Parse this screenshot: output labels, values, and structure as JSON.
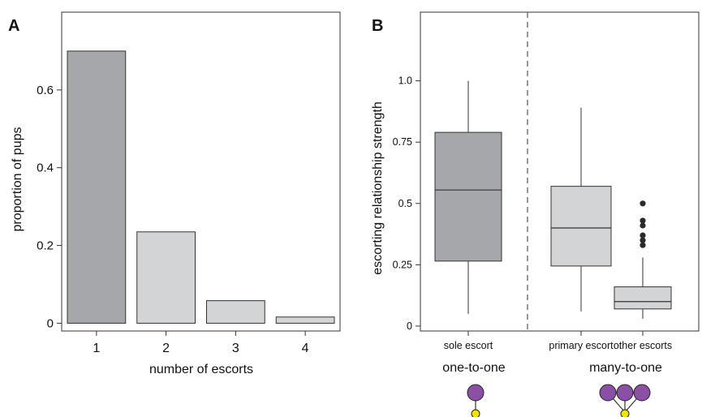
{
  "colors": {
    "dark": "#a6a7ab",
    "light": "#d3d4d6",
    "purple": "#8c4fa6",
    "yellow": "#f2e600",
    "outlier": "#2a2a2a"
  },
  "panels": {
    "a": "A",
    "b": "B"
  },
  "chart_data": [
    {
      "type": "bar",
      "panel": "A",
      "categories": [
        "1",
        "2",
        "3",
        "4"
      ],
      "values": [
        0.7,
        0.235,
        0.058,
        0.016
      ],
      "bar_shades": [
        "dark",
        "light",
        "light",
        "light"
      ],
      "xlabel": "number of escorts",
      "ylabel": "proportion of pups",
      "ylim": [
        -0.02,
        0.8
      ],
      "yticks": [
        0,
        0.2,
        0.4,
        0.6
      ],
      "ytick_labels": [
        "0",
        "0.2",
        "0.4",
        "0.6"
      ],
      "grid": false
    },
    {
      "type": "box",
      "panel": "B",
      "ylabel": "escorting relationship strength",
      "ylim": [
        -0.02,
        1.28
      ],
      "yticks": [
        0,
        0.25,
        0.5,
        0.75,
        1.0
      ],
      "ytick_labels": [
        "0",
        "0.25",
        "0.5",
        "0.75",
        "1.0"
      ],
      "categories": [
        "sole escort",
        "primary escort",
        "other escorts"
      ],
      "boxes": [
        {
          "label": "sole escort",
          "min": 0.05,
          "q1": 0.265,
          "median": 0.555,
          "q3": 0.79,
          "max": 1.0,
          "outliers": [],
          "shade": "dark"
        },
        {
          "label": "primary escort",
          "min": 0.06,
          "q1": 0.245,
          "median": 0.4,
          "q3": 0.57,
          "max": 0.89,
          "outliers": [],
          "shade": "light"
        },
        {
          "label": "other escorts",
          "min": 0.03,
          "q1": 0.07,
          "median": 0.1,
          "q3": 0.16,
          "max": 0.28,
          "outliers": [
            0.33,
            0.35,
            0.37,
            0.41,
            0.43,
            0.5
          ],
          "shade": "light"
        }
      ],
      "groups": [
        "one-to-one",
        "many-to-one"
      ],
      "grid": false
    }
  ]
}
